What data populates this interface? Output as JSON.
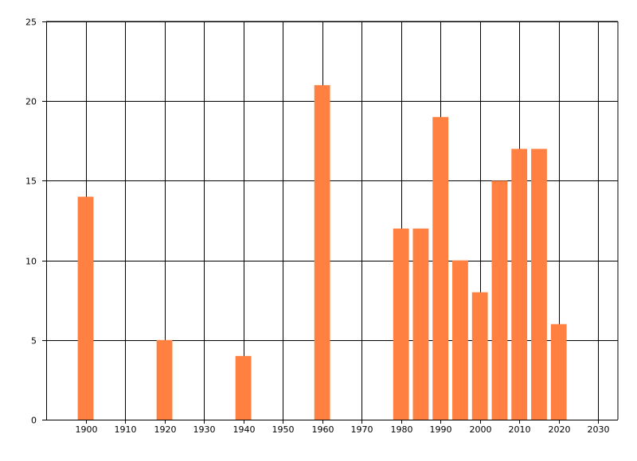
{
  "chart_data": {
    "type": "bar",
    "title": "",
    "xlabel": "",
    "ylabel": "",
    "x": [
      1900,
      1920,
      1940,
      1960,
      1980,
      1985,
      1990,
      1995,
      2000,
      2005,
      2010,
      2015,
      2020
    ],
    "values": [
      14,
      5,
      4,
      21,
      12,
      12,
      19,
      10,
      8,
      15,
      17,
      17,
      6
    ],
    "xlim": [
      1890,
      2035
    ],
    "ylim": [
      0,
      25
    ],
    "x_ticks": [
      1900,
      1910,
      1920,
      1930,
      1940,
      1950,
      1960,
      1970,
      1980,
      1990,
      2000,
      2010,
      2020,
      2030
    ],
    "x_tick_labels": [
      "1900",
      "1910",
      "1920",
      "1930",
      "1940",
      "1950",
      "1960",
      "1970",
      "1980",
      "1990",
      "2000",
      "2010",
      "2020",
      "2030"
    ],
    "y_ticks": [
      0,
      5,
      10,
      15,
      20,
      25
    ],
    "y_tick_labels": [
      "0",
      "5",
      "10",
      "15",
      "20",
      "25"
    ],
    "grid": true,
    "legend": "none",
    "bar_color": "#FF8040",
    "grid_color": "#000000"
  }
}
